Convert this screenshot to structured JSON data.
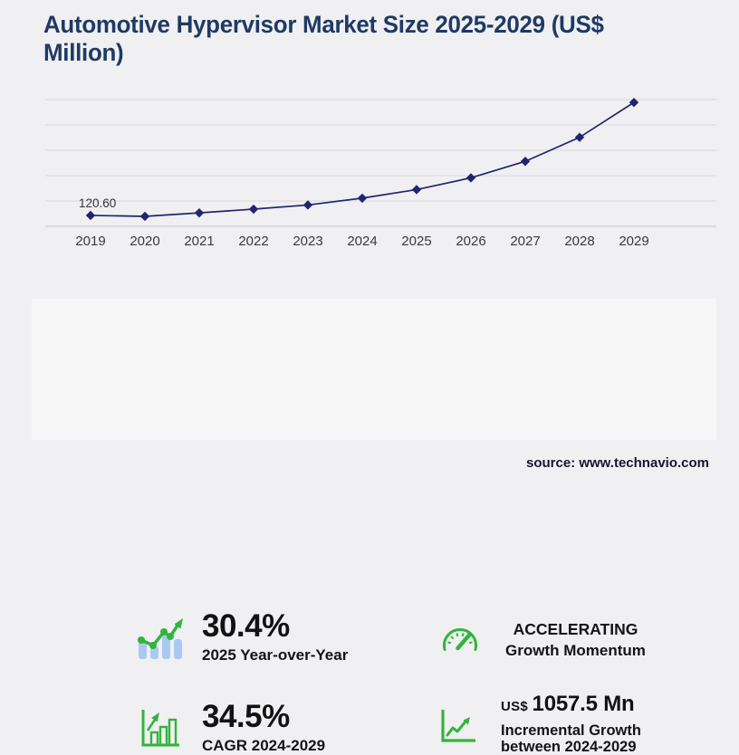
{
  "title": "Automotive Hypervisor Market Size 2025-2029 (US$ Million)",
  "title_lines": [
    "Automotive Hypervisor Market Size 2025-2029 (US$",
    "Million)"
  ],
  "chart_data": {
    "type": "line",
    "title": "Automotive Hypervisor Market Size 2025-2029 (US$ Million)",
    "x": [
      2019,
      2020,
      2021,
      2022,
      2023,
      2024,
      2025,
      2026,
      2027,
      2028,
      2029
    ],
    "values": [
      120.6,
      110.2,
      148.5,
      189.8,
      235.4,
      311.1,
      405.6,
      535.4,
      717.5,
      983.2,
      1368.6
    ],
    "labeled_point": {
      "year": 2019,
      "label": "120.60"
    },
    "ylim": [
      0,
      1400
    ],
    "gridline_count": 6,
    "grid": "horizontal only, no y-axis tick labels",
    "legend": "none",
    "series_color": "#23246f",
    "marker": "diamond"
  },
  "stats": [
    {
      "icon": "bar-trend-icon",
      "value": "30.4%",
      "label": "2025 Year-over-Year"
    },
    {
      "icon": "gauge-icon",
      "value": "ACCELERATING",
      "label": "Growth Momentum"
    },
    {
      "icon": "growth-chart-icon",
      "value": "34.5%",
      "label": "CAGR 2024-2029"
    },
    {
      "icon": "line-growth-icon",
      "value_prefix": "US$",
      "value": "1057.5 Mn",
      "label_line1": "Incremental Growth",
      "label_line2": "between 2024-2029"
    }
  ],
  "source": "source: www.technavio.com",
  "colors": {
    "title_navy": "#1f3a63",
    "line_navy": "#23246f",
    "accent_green": "#32b43c",
    "bar_blue": "#a9c9f2",
    "page_bg": "#f0f0f2",
    "panel_bg": "#f7f7f8",
    "gridline": "#d9d9d9"
  }
}
